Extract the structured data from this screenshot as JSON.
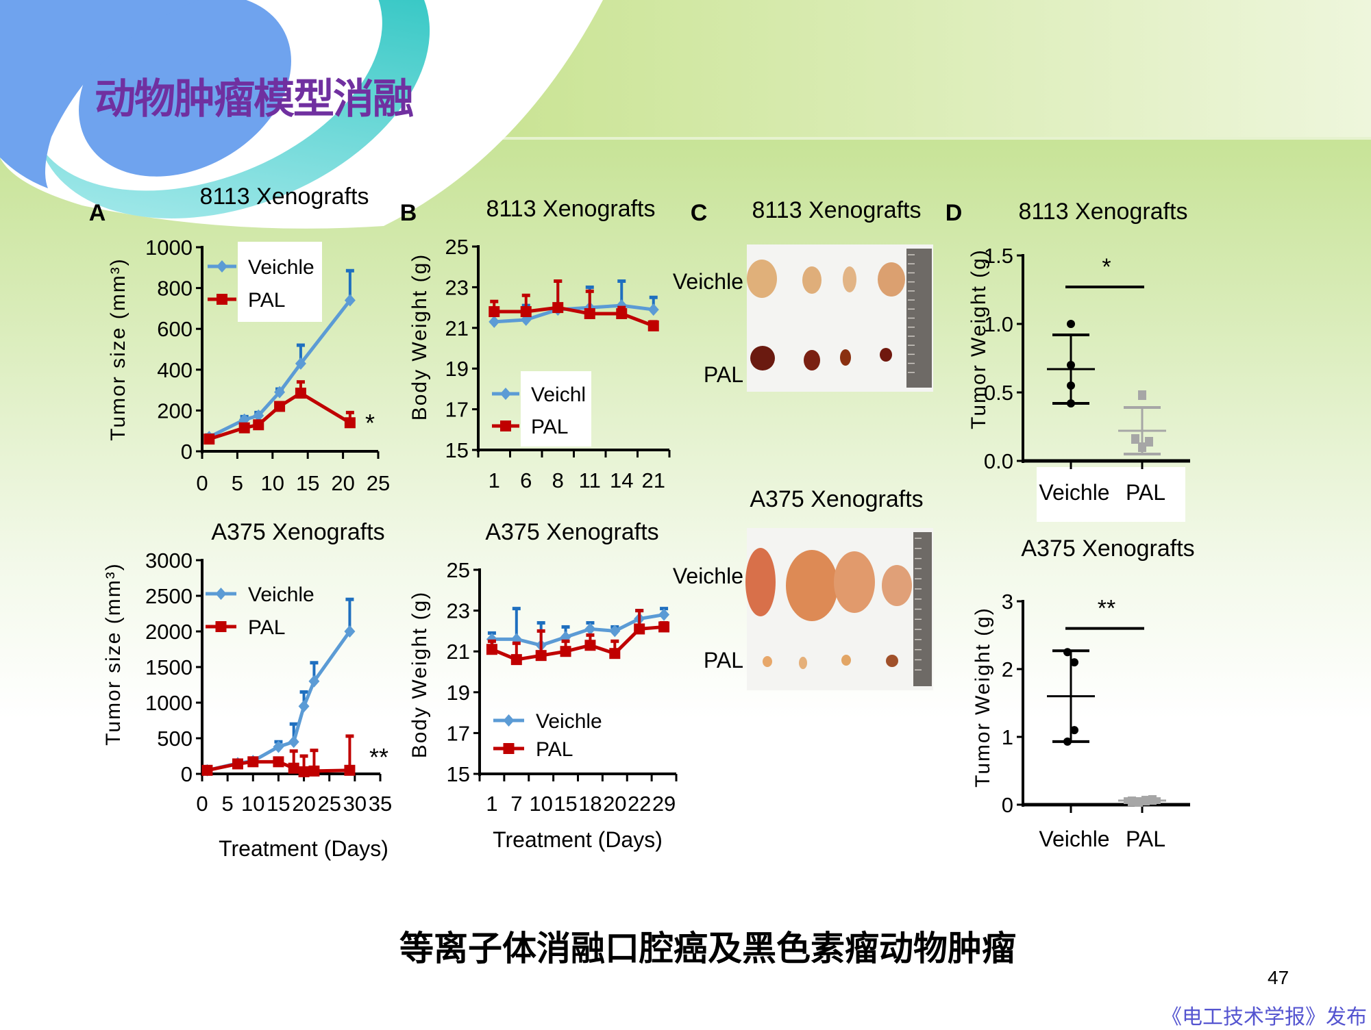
{
  "header": {
    "title": "动物肿瘤模型消融"
  },
  "caption": "等离子体消融口腔癌及黑色素瘤动物肿瘤",
  "page_number": "47",
  "footer": "《电工技术学报》发布",
  "colors": {
    "title": "#7030a0",
    "veichle_line": "#5b9bd5",
    "veichle_error": "#1f6fbf",
    "pal": "#c00000",
    "dot_veichle": "#000000",
    "dot_pal": "#a6a6a6",
    "footer": "#5555d0"
  },
  "panels": {
    "A": "A",
    "B": "B",
    "C": "C",
    "D": "D"
  },
  "photos": {
    "title_top": "8113 Xenografts",
    "title_bottom": "A375 Xenografts",
    "row_labels": [
      "Veichle",
      "PAL"
    ]
  },
  "chart_data": [
    {
      "panel": "A",
      "type": "line",
      "title": "8113 Xenografts",
      "ylabel": "Tumor size (mm³)",
      "xlabel": "",
      "xlim": [
        0,
        25
      ],
      "ylim": [
        0,
        1000
      ],
      "xticks": [
        0,
        5,
        10,
        15,
        20,
        25
      ],
      "yticks": [
        0,
        200,
        400,
        600,
        800,
        1000
      ],
      "legend": "top-left",
      "annotation": "*",
      "series": [
        {
          "name": "Veichle",
          "x": [
            1,
            6,
            8,
            11,
            14,
            21
          ],
          "y": [
            70,
            155,
            175,
            290,
            430,
            740
          ],
          "err": [
            10,
            15,
            15,
            15,
            90,
            145
          ]
        },
        {
          "name": "PAL",
          "x": [
            1,
            6,
            8,
            11,
            14,
            21
          ],
          "y": [
            60,
            115,
            130,
            220,
            285,
            140
          ],
          "err": [
            10,
            10,
            10,
            15,
            55,
            50
          ]
        }
      ]
    },
    {
      "panel": "B",
      "type": "line",
      "title": "8113 Xenografts",
      "ylabel": "Body Weight (g)",
      "xlabel": "",
      "categories": [
        "1",
        "6",
        "8",
        "11",
        "14",
        "21"
      ],
      "ylim": [
        15,
        25
      ],
      "yticks": [
        15,
        17,
        19,
        21,
        23,
        25
      ],
      "legend": "bottom-left",
      "series": [
        {
          "name": "Veichl",
          "y": [
            21.3,
            21.4,
            21.9,
            22.0,
            22.1,
            21.9
          ],
          "err": [
            0.4,
            0.7,
            1.4,
            1.0,
            1.2,
            0.6
          ]
        },
        {
          "name": "PAL",
          "y": [
            21.8,
            21.8,
            22.0,
            21.7,
            21.7,
            21.1
          ],
          "err": [
            0.5,
            0.8,
            1.3,
            1.1,
            0.3,
            0.2
          ]
        }
      ]
    },
    {
      "type": "line",
      "title": "A375 Xenografts",
      "ylabel": "Tumor size (mm³)",
      "xlabel": "Treatment (Days)",
      "xlim": [
        0,
        35
      ],
      "ylim": [
        0,
        3000
      ],
      "xticks": [
        0,
        5,
        10,
        15,
        20,
        25,
        30,
        35
      ],
      "yticks": [
        0,
        500,
        1000,
        1500,
        2000,
        2500,
        3000
      ],
      "legend": "top-left",
      "annotation": "**",
      "series": [
        {
          "name": "Veichle",
          "x": [
            1,
            7,
            10,
            15,
            18,
            20,
            22,
            29
          ],
          "y": [
            50,
            150,
            180,
            380,
            450,
            950,
            1300,
            2000
          ],
          "err": [
            20,
            30,
            30,
            70,
            250,
            200,
            260,
            450
          ]
        },
        {
          "name": "PAL",
          "x": [
            1,
            7,
            10,
            15,
            18,
            20,
            22,
            29
          ],
          "y": [
            50,
            140,
            170,
            170,
            80,
            30,
            40,
            50
          ],
          "err": [
            20,
            30,
            20,
            30,
            240,
            220,
            290,
            480
          ]
        }
      ]
    },
    {
      "type": "line",
      "title": "A375 Xenografts",
      "ylabel": "Body Weight (g)",
      "xlabel": "Treatment (Days)",
      "categories": [
        "1",
        "7",
        "10",
        "15",
        "18",
        "20",
        "22",
        "29"
      ],
      "ylim": [
        15,
        25
      ],
      "yticks": [
        15,
        17,
        19,
        21,
        23,
        25
      ],
      "legend": "bottom-left",
      "series": [
        {
          "name": "Veichle",
          "y": [
            21.6,
            21.6,
            21.3,
            21.7,
            22.1,
            22.0,
            22.6,
            22.8
          ],
          "err": [
            0.3,
            1.5,
            1.1,
            0.5,
            0.3,
            0.2,
            0.4,
            0.3
          ]
        },
        {
          "name": "PAL",
          "y": [
            21.1,
            20.6,
            20.8,
            21.0,
            21.3,
            20.9,
            22.1,
            22.2
          ],
          "err": [
            0.4,
            0.8,
            1.2,
            0.5,
            0.5,
            0.6,
            0.9,
            0.2
          ]
        }
      ]
    },
    {
      "panel": "D",
      "type": "scatter",
      "title": "8113 Xenografts",
      "ylabel": "Tumor Weight (g)",
      "categories": [
        "Veichle",
        "PAL"
      ],
      "ylim": [
        0,
        1.5
      ],
      "yticks": [
        0,
        0.5,
        1.0,
        1.5
      ],
      "ytick_labels": [
        "0.0",
        "0.5",
        "1.0",
        "1.5"
      ],
      "significance": "*",
      "significance_y": 1.27,
      "groups": [
        {
          "points": [
            1.0,
            0.7,
            0.55,
            0.42
          ],
          "mean": 0.67,
          "sd_range": [
            0.42,
            0.92
          ]
        },
        {
          "points": [
            0.48,
            0.16,
            0.14,
            0.1
          ],
          "mean": 0.22,
          "sd_range": [
            0.05,
            0.39
          ]
        }
      ]
    },
    {
      "type": "scatter",
      "title": "A375 Xenografts",
      "ylabel": "Tumor Weight (g)",
      "categories": [
        "Veichle",
        "PAL"
      ],
      "ylim": [
        0,
        3
      ],
      "yticks": [
        0,
        1,
        2,
        3
      ],
      "ytick_labels": [
        "0",
        "1",
        "2",
        "3"
      ],
      "significance": "**",
      "significance_y": 2.6,
      "groups": [
        {
          "points": [
            2.25,
            2.1,
            1.1,
            0.93
          ],
          "mean": 1.6,
          "sd_range": [
            0.93,
            2.27
          ]
        },
        {
          "points": [
            0.05,
            0.04,
            0.06,
            0.07
          ],
          "mean": 0.06,
          "sd_range": [
            0.03,
            0.09
          ]
        }
      ]
    }
  ]
}
